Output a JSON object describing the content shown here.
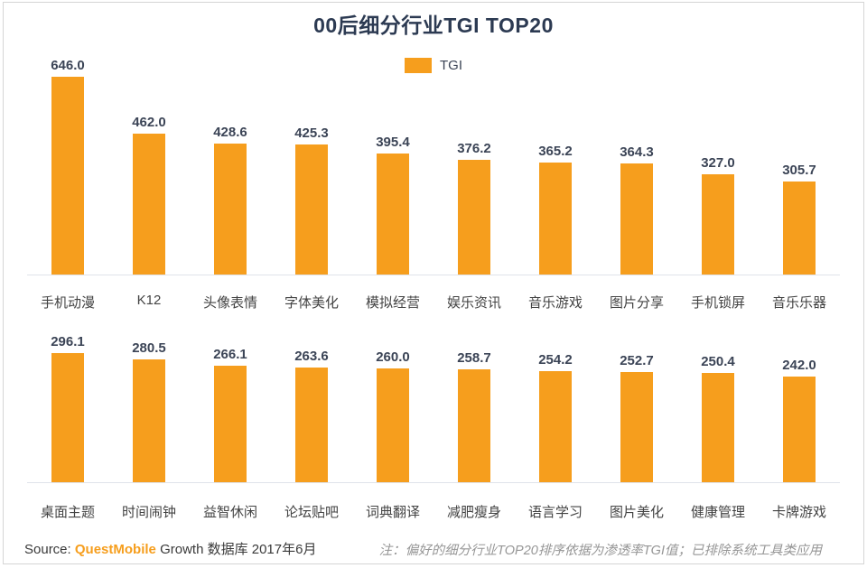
{
  "title": "00后细分行业TGI TOP20",
  "legend": {
    "label": "TGI",
    "color": "#F69E1D"
  },
  "colors": {
    "bar": "#F69E1D",
    "title": "#2C3A52",
    "value_label": "#3B4456",
    "category_label": "#434343",
    "axis_line": "#DFE3EA",
    "note": "#969696",
    "accent": "#F69E1D"
  },
  "chart_data": {
    "type": "bar",
    "title": "00后细分行业TGI TOP20",
    "legend": [
      "TGI"
    ],
    "legend_position": "top-center",
    "grid": false,
    "value_label_decimals": 1,
    "rows": [
      {
        "categories": [
          "手机动漫",
          "K12",
          "头像表情",
          "字体美化",
          "模拟经营",
          "娱乐资讯",
          "音乐游戏",
          "图片分享",
          "手机锁屏",
          "音乐乐器"
        ],
        "values": [
          646.0,
          462.0,
          428.6,
          425.3,
          395.4,
          376.2,
          365.2,
          364.3,
          327.0,
          305.7
        ],
        "ylim": [
          0,
          700
        ]
      },
      {
        "categories": [
          "桌面主题",
          "时间闹钟",
          "益智休闲",
          "论坛贴吧",
          "词典翻译",
          "减肥瘦身",
          "语言学习",
          "图片美化",
          "健康管理",
          "卡牌游戏"
        ],
        "values": [
          296.1,
          280.5,
          266.1,
          263.6,
          260.0,
          258.7,
          254.2,
          252.7,
          250.4,
          242.0
        ],
        "ylim": [
          0,
          300
        ]
      }
    ]
  },
  "footer": {
    "source_prefix": "Source:",
    "source_brand": "QuestMobile",
    "source_suffix": "Growth 数据库 2017年6月",
    "note": "注：偏好的细分行业TOP20排序依据为渗透率TGI值；已排除系统工具类应用"
  }
}
